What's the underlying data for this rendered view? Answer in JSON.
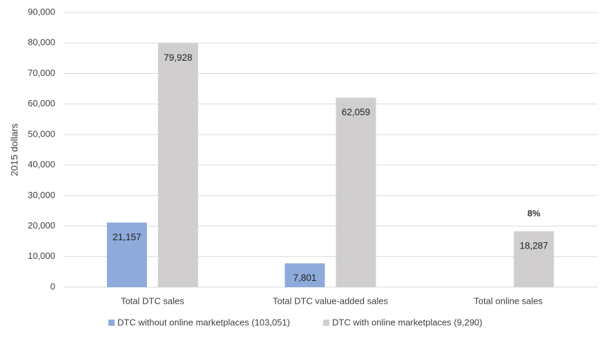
{
  "chart_data": {
    "type": "bar",
    "y_label": "2015 dollars",
    "categories": [
      "Total DTC sales",
      "Total DTC value-added sales",
      "Total online sales"
    ],
    "series": [
      {
        "name": "DTC without online marketplaces (103,051)",
        "color": "#8eaadb",
        "values": [
          21157,
          7801,
          null
        ],
        "value_labels": [
          "21,157",
          "7,801",
          null
        ]
      },
      {
        "name": "DTC with online marketplaces (9,290)",
        "color": "#d0cece",
        "values": [
          79928,
          62059,
          18287
        ],
        "value_labels": [
          "79,928",
          "62,059",
          "18,287"
        ],
        "annotations": [
          null,
          null,
          "8%"
        ]
      }
    ],
    "ylim": [
      0,
      90000
    ],
    "yticks": [
      0,
      {
        "value": 10000,
        "label": "10,000"
      },
      {
        "value": 20000,
        "label": "20,000"
      },
      {
        "value": 30000,
        "label": "30,000"
      },
      {
        "value": 40000,
        "label": "40,000"
      },
      {
        "value": 50000,
        "label": "50,000"
      },
      {
        "value": 60000,
        "label": "60,000"
      },
      {
        "value": 70000,
        "label": "70,000"
      },
      {
        "value": 80000,
        "label": "80,000"
      },
      {
        "value": 90000,
        "label": "90,000"
      }
    ],
    "grid": true,
    "legend": "bottom"
  }
}
